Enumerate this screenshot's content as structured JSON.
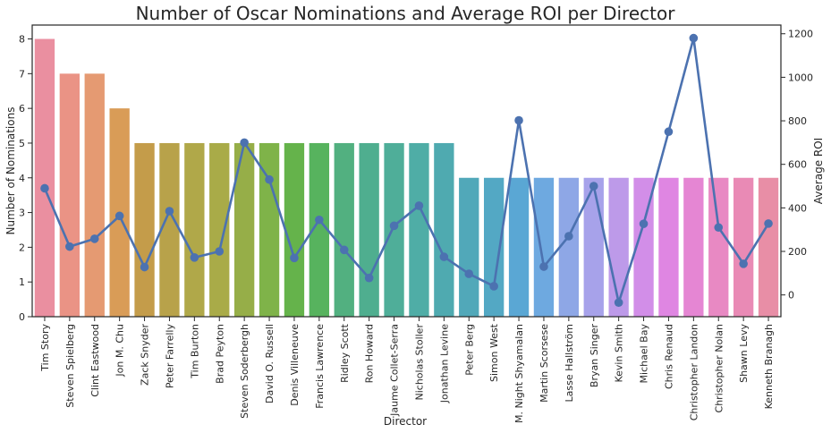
{
  "chart_data": {
    "type": "bar",
    "title": "Number of Oscar Nominations and Average ROI per Director",
    "xlabel": "Director",
    "ylabel": "Number of Nominations",
    "y2label": "Average ROI",
    "ylim": [
      0,
      8.4
    ],
    "y_ticks": [
      0,
      1,
      2,
      3,
      4,
      5,
      6,
      7,
      8
    ],
    "y2lim": [
      -100,
      1240
    ],
    "y2_ticks": [
      0,
      200,
      400,
      600,
      800,
      1000,
      1200
    ],
    "grid": false,
    "categories": [
      "Tim Story",
      "Steven Spielberg",
      "Clint Eastwood",
      "Jon M. Chu",
      "Zack Snyder",
      "Peter Farrelly",
      "Tim Burton",
      "Brad Peyton",
      "Steven Soderbergh",
      "David O. Russell",
      "Denis Villeneuve",
      "Francis Lawrence",
      "Ridley Scott",
      "Ron Howard",
      "Jaume Collet-Serra",
      "Nicholas Stoller",
      "Jonathan Levine",
      "Peter Berg",
      "Simon West",
      "M. Night Shyamalan",
      "Martin Scorsese",
      "Lasse Hallström",
      "Bryan Singer",
      "Kevin Smith",
      "Michael Bay",
      "Chris Renaud",
      "Christopher Landon",
      "Christopher Nolan",
      "Shawn Levy",
      "Kenneth Branagh"
    ],
    "series": [
      {
        "name": "Number of Nominations",
        "type": "bar",
        "axis": "left",
        "values": [
          8,
          7,
          7,
          6,
          5,
          5,
          5,
          5,
          5,
          5,
          5,
          5,
          5,
          5,
          5,
          5,
          5,
          4,
          4,
          4,
          4,
          4,
          4,
          4,
          4,
          4,
          4,
          4,
          4,
          4
        ],
        "colors": [
          "#ea8fa0",
          "#ea9385",
          "#e59a72",
          "#d99c57",
          "#c49c4a",
          "#b8a24a",
          "#b0a849",
          "#a9ab48",
          "#96ae48",
          "#7fb349",
          "#65b34b",
          "#57b35e",
          "#52b080",
          "#4fae8f",
          "#4fae99",
          "#4fada6",
          "#4faab0",
          "#51a8b9",
          "#53a8c4",
          "#5aa7d4",
          "#6ea9e0",
          "#8ea7e6",
          "#a7a2ea",
          "#bd9ae9",
          "#d28ee8",
          "#df86e2",
          "#e586d3",
          "#e889c3",
          "#e98ab5",
          "#e88ea6"
        ]
      },
      {
        "name": "Average ROI",
        "type": "line",
        "axis": "right",
        "color": "#4c72b0",
        "values": [
          490,
          222,
          258,
          363,
          128,
          385,
          172,
          200,
          700,
          530,
          170,
          345,
          207,
          78,
          318,
          410,
          175,
          97,
          40,
          802,
          130,
          270,
          500,
          -35,
          327,
          750,
          1180,
          310,
          143,
          328
        ]
      }
    ]
  }
}
